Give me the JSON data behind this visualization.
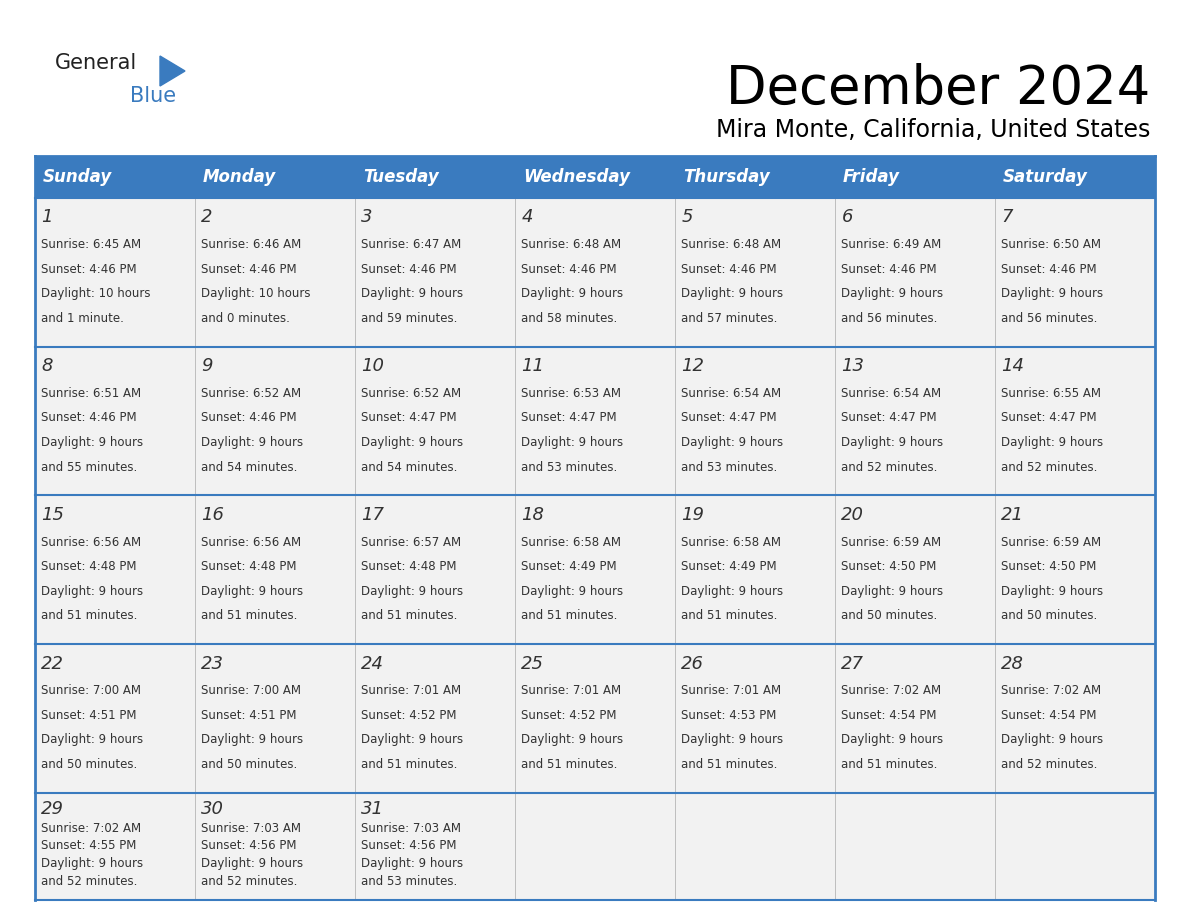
{
  "title": "December 2024",
  "subtitle": "Mira Monte, California, United States",
  "header_bg_color": "#3a7bbf",
  "header_text_color": "#ffffff",
  "cell_bg_color": "#f2f2f2",
  "border_color": "#3a7bbf",
  "thin_line_color": "#aaaaaa",
  "day_headers": [
    "Sunday",
    "Monday",
    "Tuesday",
    "Wednesday",
    "Thursday",
    "Friday",
    "Saturday"
  ],
  "weeks": [
    [
      {
        "day": 1,
        "sunrise": "6:45 AM",
        "sunset": "4:46 PM",
        "daylight_line1": "Daylight: 10 hours",
        "daylight_line2": "and 1 minute."
      },
      {
        "day": 2,
        "sunrise": "6:46 AM",
        "sunset": "4:46 PM",
        "daylight_line1": "Daylight: 10 hours",
        "daylight_line2": "and 0 minutes."
      },
      {
        "day": 3,
        "sunrise": "6:47 AM",
        "sunset": "4:46 PM",
        "daylight_line1": "Daylight: 9 hours",
        "daylight_line2": "and 59 minutes."
      },
      {
        "day": 4,
        "sunrise": "6:48 AM",
        "sunset": "4:46 PM",
        "daylight_line1": "Daylight: 9 hours",
        "daylight_line2": "and 58 minutes."
      },
      {
        "day": 5,
        "sunrise": "6:48 AM",
        "sunset": "4:46 PM",
        "daylight_line1": "Daylight: 9 hours",
        "daylight_line2": "and 57 minutes."
      },
      {
        "day": 6,
        "sunrise": "6:49 AM",
        "sunset": "4:46 PM",
        "daylight_line1": "Daylight: 9 hours",
        "daylight_line2": "and 56 minutes."
      },
      {
        "day": 7,
        "sunrise": "6:50 AM",
        "sunset": "4:46 PM",
        "daylight_line1": "Daylight: 9 hours",
        "daylight_line2": "and 56 minutes."
      }
    ],
    [
      {
        "day": 8,
        "sunrise": "6:51 AM",
        "sunset": "4:46 PM",
        "daylight_line1": "Daylight: 9 hours",
        "daylight_line2": "and 55 minutes."
      },
      {
        "day": 9,
        "sunrise": "6:52 AM",
        "sunset": "4:46 PM",
        "daylight_line1": "Daylight: 9 hours",
        "daylight_line2": "and 54 minutes."
      },
      {
        "day": 10,
        "sunrise": "6:52 AM",
        "sunset": "4:47 PM",
        "daylight_line1": "Daylight: 9 hours",
        "daylight_line2": "and 54 minutes."
      },
      {
        "day": 11,
        "sunrise": "6:53 AM",
        "sunset": "4:47 PM",
        "daylight_line1": "Daylight: 9 hours",
        "daylight_line2": "and 53 minutes."
      },
      {
        "day": 12,
        "sunrise": "6:54 AM",
        "sunset": "4:47 PM",
        "daylight_line1": "Daylight: 9 hours",
        "daylight_line2": "and 53 minutes."
      },
      {
        "day": 13,
        "sunrise": "6:54 AM",
        "sunset": "4:47 PM",
        "daylight_line1": "Daylight: 9 hours",
        "daylight_line2": "and 52 minutes."
      },
      {
        "day": 14,
        "sunrise": "6:55 AM",
        "sunset": "4:47 PM",
        "daylight_line1": "Daylight: 9 hours",
        "daylight_line2": "and 52 minutes."
      }
    ],
    [
      {
        "day": 15,
        "sunrise": "6:56 AM",
        "sunset": "4:48 PM",
        "daylight_line1": "Daylight: 9 hours",
        "daylight_line2": "and 51 minutes."
      },
      {
        "day": 16,
        "sunrise": "6:56 AM",
        "sunset": "4:48 PM",
        "daylight_line1": "Daylight: 9 hours",
        "daylight_line2": "and 51 minutes."
      },
      {
        "day": 17,
        "sunrise": "6:57 AM",
        "sunset": "4:48 PM",
        "daylight_line1": "Daylight: 9 hours",
        "daylight_line2": "and 51 minutes."
      },
      {
        "day": 18,
        "sunrise": "6:58 AM",
        "sunset": "4:49 PM",
        "daylight_line1": "Daylight: 9 hours",
        "daylight_line2": "and 51 minutes."
      },
      {
        "day": 19,
        "sunrise": "6:58 AM",
        "sunset": "4:49 PM",
        "daylight_line1": "Daylight: 9 hours",
        "daylight_line2": "and 51 minutes."
      },
      {
        "day": 20,
        "sunrise": "6:59 AM",
        "sunset": "4:50 PM",
        "daylight_line1": "Daylight: 9 hours",
        "daylight_line2": "and 50 minutes."
      },
      {
        "day": 21,
        "sunrise": "6:59 AM",
        "sunset": "4:50 PM",
        "daylight_line1": "Daylight: 9 hours",
        "daylight_line2": "and 50 minutes."
      }
    ],
    [
      {
        "day": 22,
        "sunrise": "7:00 AM",
        "sunset": "4:51 PM",
        "daylight_line1": "Daylight: 9 hours",
        "daylight_line2": "and 50 minutes."
      },
      {
        "day": 23,
        "sunrise": "7:00 AM",
        "sunset": "4:51 PM",
        "daylight_line1": "Daylight: 9 hours",
        "daylight_line2": "and 50 minutes."
      },
      {
        "day": 24,
        "sunrise": "7:01 AM",
        "sunset": "4:52 PM",
        "daylight_line1": "Daylight: 9 hours",
        "daylight_line2": "and 51 minutes."
      },
      {
        "day": 25,
        "sunrise": "7:01 AM",
        "sunset": "4:52 PM",
        "daylight_line1": "Daylight: 9 hours",
        "daylight_line2": "and 51 minutes."
      },
      {
        "day": 26,
        "sunrise": "7:01 AM",
        "sunset": "4:53 PM",
        "daylight_line1": "Daylight: 9 hours",
        "daylight_line2": "and 51 minutes."
      },
      {
        "day": 27,
        "sunrise": "7:02 AM",
        "sunset": "4:54 PM",
        "daylight_line1": "Daylight: 9 hours",
        "daylight_line2": "and 51 minutes."
      },
      {
        "day": 28,
        "sunrise": "7:02 AM",
        "sunset": "4:54 PM",
        "daylight_line1": "Daylight: 9 hours",
        "daylight_line2": "and 52 minutes."
      }
    ],
    [
      {
        "day": 29,
        "sunrise": "7:02 AM",
        "sunset": "4:55 PM",
        "daylight_line1": "Daylight: 9 hours",
        "daylight_line2": "and 52 minutes."
      },
      {
        "day": 30,
        "sunrise": "7:03 AM",
        "sunset": "4:56 PM",
        "daylight_line1": "Daylight: 9 hours",
        "daylight_line2": "and 52 minutes."
      },
      {
        "day": 31,
        "sunrise": "7:03 AM",
        "sunset": "4:56 PM",
        "daylight_line1": "Daylight: 9 hours",
        "daylight_line2": "and 53 minutes."
      },
      null,
      null,
      null,
      null
    ]
  ]
}
